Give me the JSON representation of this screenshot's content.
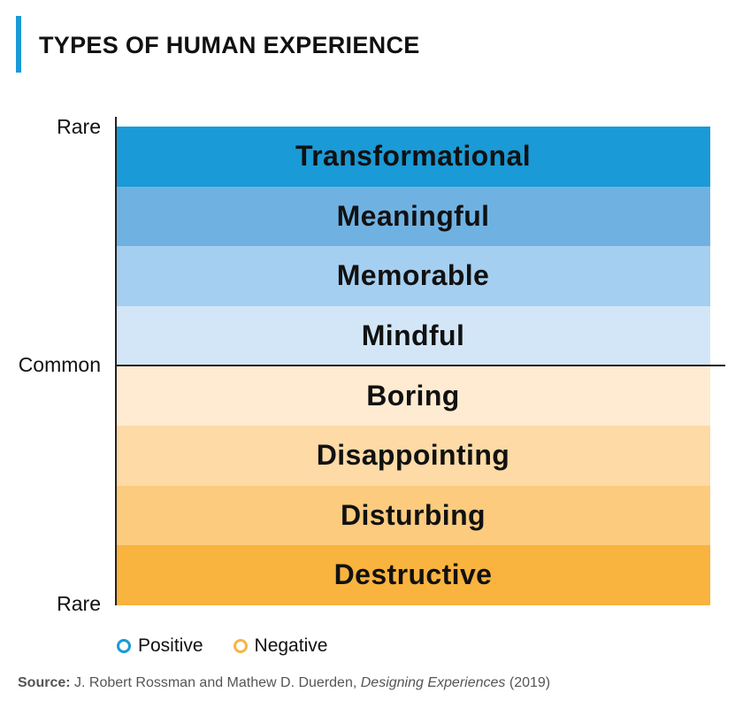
{
  "title": "TYPES OF HUMAN EXPERIENCE",
  "axis": {
    "top": "Rare",
    "middle": "Common",
    "bottom": "Rare"
  },
  "colors": {
    "accent": "#1a9ad6",
    "positive": "#1a9ad6",
    "negative": "#f5b642"
  },
  "bands": [
    {
      "label": "Transformational",
      "color": "#1a9ad6"
    },
    {
      "label": "Meaningful",
      "color": "#6fb2e2"
    },
    {
      "label": "Memorable",
      "color": "#a5cff0"
    },
    {
      "label": "Mindful",
      "color": "#d3e6f8"
    },
    {
      "label": "Boring",
      "color": "#feebd2"
    },
    {
      "label": "Disappointing",
      "color": "#fddaa6"
    },
    {
      "label": "Disturbing",
      "color": "#fccb7e"
    },
    {
      "label": "Destructive",
      "color": "#f9b33f"
    }
  ],
  "legend": [
    {
      "label": "Positive",
      "color": "#1a9ad6"
    },
    {
      "label": "Negative",
      "color": "#f5b642"
    }
  ],
  "source": {
    "prefix": "Source:",
    "authors": "J. Robert Rossman and Mathew D. Duerden,",
    "book": "Designing Experiences",
    "year": "(2019)"
  }
}
